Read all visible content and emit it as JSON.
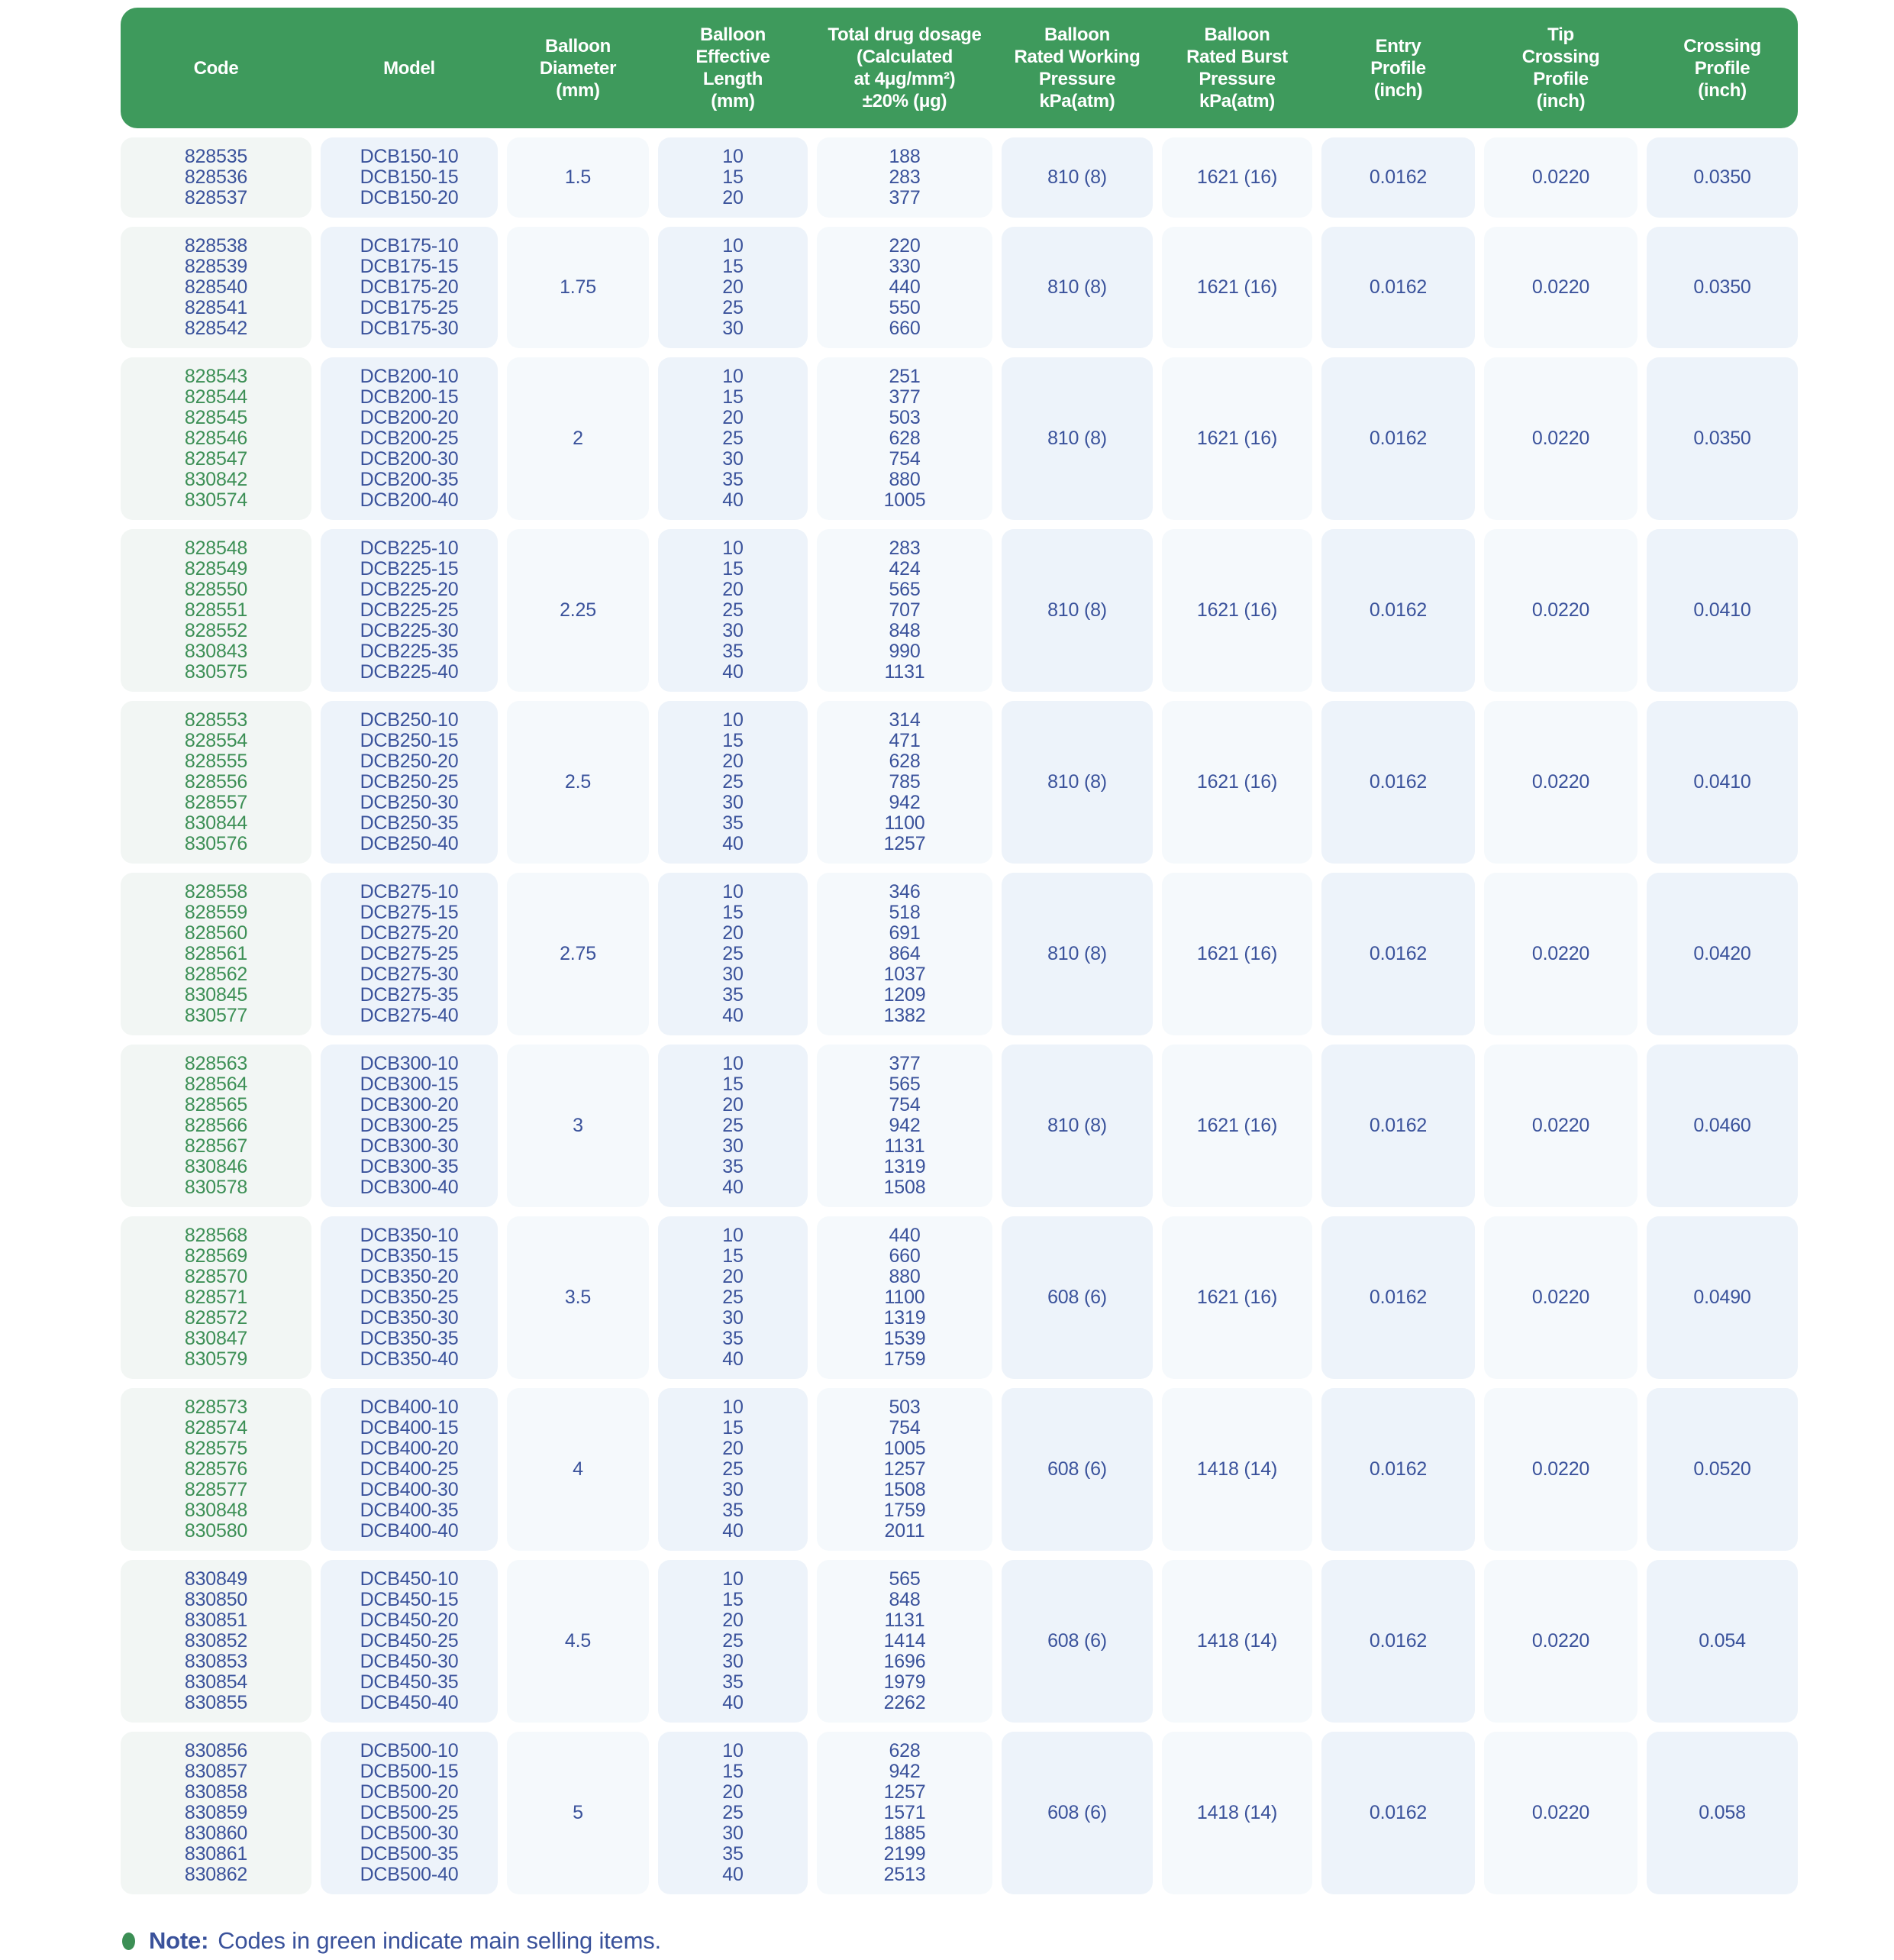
{
  "colors": {
    "header_green": "#3e9a5c",
    "code_green": "#3c8f55",
    "text_navy": "#3a529b",
    "cell_bg_blue": "#edf3fa",
    "cell_bg_light": "#f5f9fc",
    "cell_bg_code": "#f2f6f4",
    "page_bg": "#ffffff"
  },
  "table": {
    "columns": [
      {
        "id": "code",
        "lines": [
          "Code"
        ]
      },
      {
        "id": "model",
        "lines": [
          "Model"
        ]
      },
      {
        "id": "balloon-diameter",
        "lines": [
          "Balloon",
          "Diameter",
          "(mm)"
        ]
      },
      {
        "id": "balloon-effective-length",
        "lines": [
          "Balloon",
          "Effective",
          "Length",
          "(mm)"
        ]
      },
      {
        "id": "total-drug-dosage",
        "lines": [
          "Total drug dosage",
          "(Calculated",
          "at 4μg/mm²)",
          "±20% (μg)"
        ]
      },
      {
        "id": "rated-working-pressure",
        "lines": [
          "Balloon",
          "Rated Working",
          "Pressure",
          "kPa(atm)"
        ]
      },
      {
        "id": "rated-burst-pressure",
        "lines": [
          "Balloon",
          "Rated Burst",
          "Pressure",
          "kPa(atm)"
        ]
      },
      {
        "id": "entry-profile",
        "lines": [
          "Entry",
          "Profile",
          "(inch)"
        ]
      },
      {
        "id": "tip-crossing-profile",
        "lines": [
          "Tip",
          "Crossing",
          "Profile",
          "(inch)"
        ]
      },
      {
        "id": "crossing-profile",
        "lines": [
          "Crossing",
          "Profile",
          "(inch)"
        ]
      }
    ],
    "groups": [
      {
        "diameter": "1.5",
        "main_selling": false,
        "codes": [
          "828535",
          "828536",
          "828537"
        ],
        "models": [
          "DCB150-10",
          "DCB150-15",
          "DCB150-20"
        ],
        "lengths": [
          "10",
          "15",
          "20"
        ],
        "dosages": [
          "188",
          "283",
          "377"
        ],
        "working_pressure": "810 (8)",
        "burst_pressure": "1621 (16)",
        "entry_profile": "0.0162",
        "tip_crossing_profile": "0.0220",
        "crossing_profile": "0.0350"
      },
      {
        "diameter": "1.75",
        "main_selling": false,
        "codes": [
          "828538",
          "828539",
          "828540",
          "828541",
          "828542"
        ],
        "models": [
          "DCB175-10",
          "DCB175-15",
          "DCB175-20",
          "DCB175-25",
          "DCB175-30"
        ],
        "lengths": [
          "10",
          "15",
          "20",
          "25",
          "30"
        ],
        "dosages": [
          "220",
          "330",
          "440",
          "550",
          "660"
        ],
        "working_pressure": "810 (8)",
        "burst_pressure": "1621 (16)",
        "entry_profile": "0.0162",
        "tip_crossing_profile": "0.0220",
        "crossing_profile": "0.0350"
      },
      {
        "diameter": "2",
        "main_selling": true,
        "codes": [
          "828543",
          "828544",
          "828545",
          "828546",
          "828547",
          "830842",
          "830574"
        ],
        "models": [
          "DCB200-10",
          "DCB200-15",
          "DCB200-20",
          "DCB200-25",
          "DCB200-30",
          "DCB200-35",
          "DCB200-40"
        ],
        "lengths": [
          "10",
          "15",
          "20",
          "25",
          "30",
          "35",
          "40"
        ],
        "dosages": [
          "251",
          "377",
          "503",
          "628",
          "754",
          "880",
          "1005"
        ],
        "working_pressure": "810 (8)",
        "burst_pressure": "1621 (16)",
        "entry_profile": "0.0162",
        "tip_crossing_profile": "0.0220",
        "crossing_profile": "0.0350"
      },
      {
        "diameter": "2.25",
        "main_selling": true,
        "codes": [
          "828548",
          "828549",
          "828550",
          "828551",
          "828552",
          "830843",
          "830575"
        ],
        "models": [
          "DCB225-10",
          "DCB225-15",
          "DCB225-20",
          "DCB225-25",
          "DCB225-30",
          "DCB225-35",
          "DCB225-40"
        ],
        "lengths": [
          "10",
          "15",
          "20",
          "25",
          "30",
          "35",
          "40"
        ],
        "dosages": [
          "283",
          "424",
          "565",
          "707",
          "848",
          "990",
          "1131"
        ],
        "working_pressure": "810 (8)",
        "burst_pressure": "1621 (16)",
        "entry_profile": "0.0162",
        "tip_crossing_profile": "0.0220",
        "crossing_profile": "0.0410"
      },
      {
        "diameter": "2.5",
        "main_selling": true,
        "codes": [
          "828553",
          "828554",
          "828555",
          "828556",
          "828557",
          "830844",
          "830576"
        ],
        "models": [
          "DCB250-10",
          "DCB250-15",
          "DCB250-20",
          "DCB250-25",
          "DCB250-30",
          "DCB250-35",
          "DCB250-40"
        ],
        "lengths": [
          "10",
          "15",
          "20",
          "25",
          "30",
          "35",
          "40"
        ],
        "dosages": [
          "314",
          "471",
          "628",
          "785",
          "942",
          "1100",
          "1257"
        ],
        "working_pressure": "810 (8)",
        "burst_pressure": "1621 (16)",
        "entry_profile": "0.0162",
        "tip_crossing_profile": "0.0220",
        "crossing_profile": "0.0410"
      },
      {
        "diameter": "2.75",
        "main_selling": true,
        "codes": [
          "828558",
          "828559",
          "828560",
          "828561",
          "828562",
          "830845",
          "830577"
        ],
        "models": [
          "DCB275-10",
          "DCB275-15",
          "DCB275-20",
          "DCB275-25",
          "DCB275-30",
          "DCB275-35",
          "DCB275-40"
        ],
        "lengths": [
          "10",
          "15",
          "20",
          "25",
          "30",
          "35",
          "40"
        ],
        "dosages": [
          "346",
          "518",
          "691",
          "864",
          "1037",
          "1209",
          "1382"
        ],
        "working_pressure": "810 (8)",
        "burst_pressure": "1621 (16)",
        "entry_profile": "0.0162",
        "tip_crossing_profile": "0.0220",
        "crossing_profile": "0.0420"
      },
      {
        "diameter": "3",
        "main_selling": true,
        "codes": [
          "828563",
          "828564",
          "828565",
          "828566",
          "828567",
          "830846",
          "830578"
        ],
        "models": [
          "DCB300-10",
          "DCB300-15",
          "DCB300-20",
          "DCB300-25",
          "DCB300-30",
          "DCB300-35",
          "DCB300-40"
        ],
        "lengths": [
          "10",
          "15",
          "20",
          "25",
          "30",
          "35",
          "40"
        ],
        "dosages": [
          "377",
          "565",
          "754",
          "942",
          "1131",
          "1319",
          "1508"
        ],
        "working_pressure": "810 (8)",
        "burst_pressure": "1621 (16)",
        "entry_profile": "0.0162",
        "tip_crossing_profile": "0.0220",
        "crossing_profile": "0.0460"
      },
      {
        "diameter": "3.5",
        "main_selling": true,
        "codes": [
          "828568",
          "828569",
          "828570",
          "828571",
          "828572",
          "830847",
          "830579"
        ],
        "models": [
          "DCB350-10",
          "DCB350-15",
          "DCB350-20",
          "DCB350-25",
          "DCB350-30",
          "DCB350-35",
          "DCB350-40"
        ],
        "lengths": [
          "10",
          "15",
          "20",
          "25",
          "30",
          "35",
          "40"
        ],
        "dosages": [
          "440",
          "660",
          "880",
          "1100",
          "1319",
          "1539",
          "1759"
        ],
        "working_pressure": "608 (6)",
        "burst_pressure": "1621 (16)",
        "entry_profile": "0.0162",
        "tip_crossing_profile": "0.0220",
        "crossing_profile": "0.0490"
      },
      {
        "diameter": "4",
        "main_selling": true,
        "codes": [
          "828573",
          "828574",
          "828575",
          "828576",
          "828577",
          "830848",
          "830580"
        ],
        "models": [
          "DCB400-10",
          "DCB400-15",
          "DCB400-20",
          "DCB400-25",
          "DCB400-30",
          "DCB400-35",
          "DCB400-40"
        ],
        "lengths": [
          "10",
          "15",
          "20",
          "25",
          "30",
          "35",
          "40"
        ],
        "dosages": [
          "503",
          "754",
          "1005",
          "1257",
          "1508",
          "1759",
          "2011"
        ],
        "working_pressure": "608 (6)",
        "burst_pressure": "1418 (14)",
        "entry_profile": "0.0162",
        "tip_crossing_profile": "0.0220",
        "crossing_profile": "0.0520"
      },
      {
        "diameter": "4.5",
        "main_selling": false,
        "codes": [
          "830849",
          "830850",
          "830851",
          "830852",
          "830853",
          "830854",
          "830855"
        ],
        "models": [
          "DCB450-10",
          "DCB450-15",
          "DCB450-20",
          "DCB450-25",
          "DCB450-30",
          "DCB450-35",
          "DCB450-40"
        ],
        "lengths": [
          "10",
          "15",
          "20",
          "25",
          "30",
          "35",
          "40"
        ],
        "dosages": [
          "565",
          "848",
          "1131",
          "1414",
          "1696",
          "1979",
          "2262"
        ],
        "working_pressure": "608 (6)",
        "burst_pressure": "1418 (14)",
        "entry_profile": "0.0162",
        "tip_crossing_profile": "0.0220",
        "crossing_profile": "0.054"
      },
      {
        "diameter": "5",
        "main_selling": false,
        "codes": [
          "830856",
          "830857",
          "830858",
          "830859",
          "830860",
          "830861",
          "830862"
        ],
        "models": [
          "DCB500-10",
          "DCB500-15",
          "DCB500-20",
          "DCB500-25",
          "DCB500-30",
          "DCB500-35",
          "DCB500-40"
        ],
        "lengths": [
          "10",
          "15",
          "20",
          "25",
          "30",
          "35",
          "40"
        ],
        "dosages": [
          "628",
          "942",
          "1257",
          "1571",
          "1885",
          "2199",
          "2513"
        ],
        "working_pressure": "608 (6)",
        "burst_pressure": "1418 (14)",
        "entry_profile": "0.0162",
        "tip_crossing_profile": "0.0220",
        "crossing_profile": "0.058"
      }
    ]
  },
  "note": {
    "label": "Note:",
    "text": "Codes in green indicate main selling items."
  }
}
